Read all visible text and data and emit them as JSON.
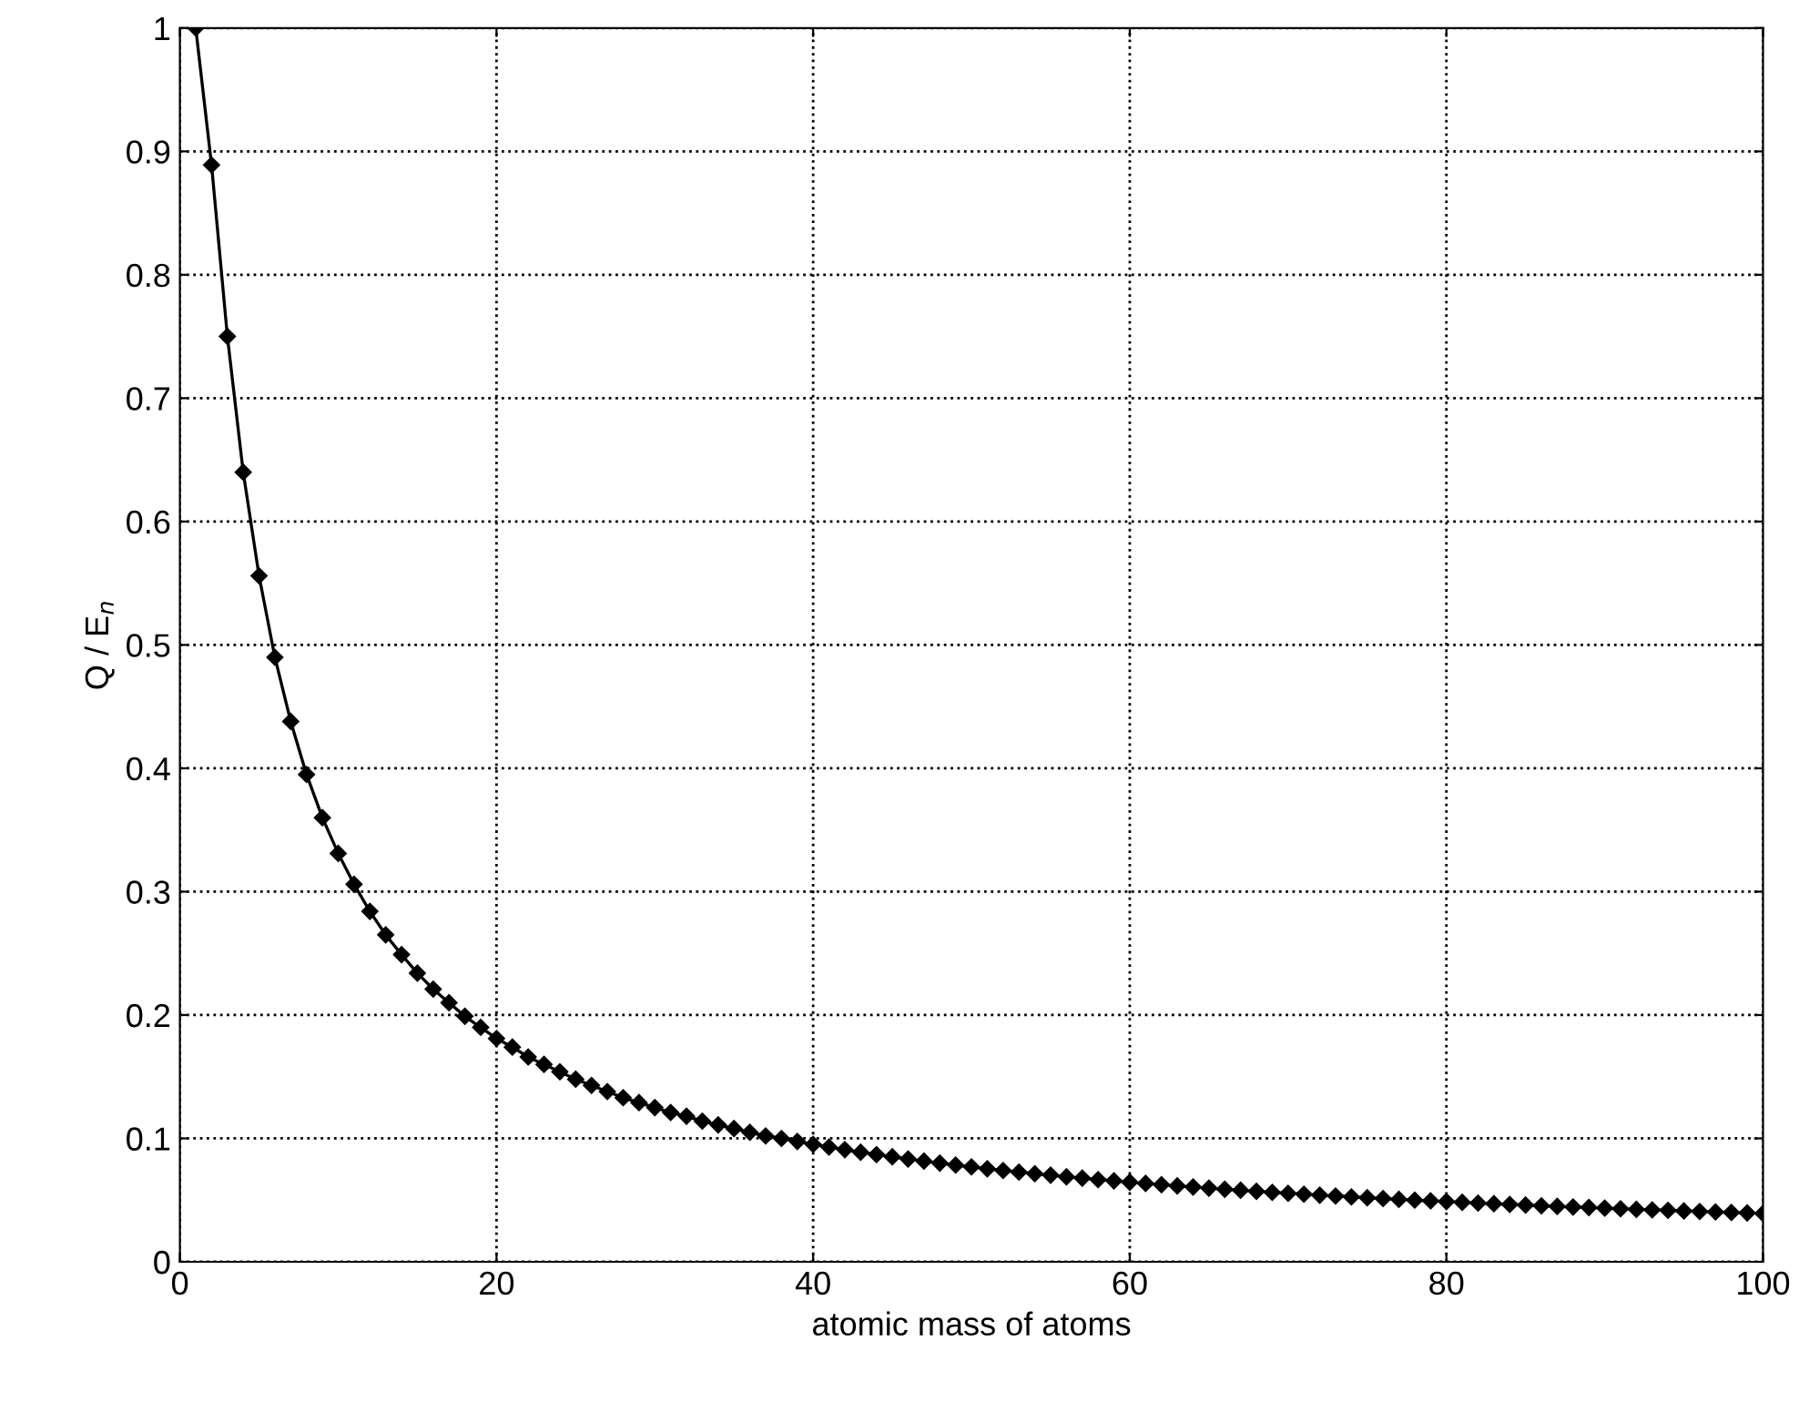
{
  "chart_data": {
    "type": "line",
    "xlabel": "atomic mass of atoms",
    "ylabel": "Q / E$_{n}$",
    "x": [
      1,
      2,
      3,
      4,
      5,
      6,
      7,
      8,
      9,
      10,
      11,
      12,
      13,
      14,
      15,
      16,
      17,
      18,
      19,
      20,
      21,
      22,
      23,
      24,
      25,
      26,
      27,
      28,
      29,
      30,
      31,
      32,
      33,
      34,
      35,
      36,
      37,
      38,
      39,
      40,
      41,
      42,
      43,
      44,
      45,
      46,
      47,
      48,
      49,
      50,
      51,
      52,
      53,
      54,
      55,
      56,
      57,
      58,
      59,
      60,
      61,
      62,
      63,
      64,
      65,
      66,
      67,
      68,
      69,
      70,
      71,
      72,
      73,
      74,
      75,
      76,
      77,
      78,
      79,
      80,
      81,
      82,
      83,
      84,
      85,
      86,
      87,
      88,
      89,
      90,
      91,
      92,
      93,
      94,
      95,
      96,
      97,
      98,
      99,
      100
    ],
    "series": [
      {
        "color": "#000000",
        "values": [
          1,
          0.889,
          0.75,
          0.64,
          0.556,
          0.49,
          0.438,
          0.395,
          0.36,
          0.331,
          0.306,
          0.284,
          0.265,
          0.249,
          0.234,
          0.221,
          0.21,
          0.199,
          0.19,
          0.181,
          0.174,
          0.166,
          0.16,
          0.154,
          0.148,
          0.143,
          0.138,
          0.133,
          0.129,
          0.125,
          0.121,
          0.118,
          0.114,
          0.111,
          0.108,
          0.105,
          0.102,
          0.1,
          0.0975,
          0.0952,
          0.093,
          0.0909,
          0.0888,
          0.0869,
          0.0851,
          0.0833,
          0.0816,
          0.08,
          0.0784,
          0.0769,
          0.0754,
          0.074,
          0.0727,
          0.0714,
          0.0702,
          0.0689,
          0.0678,
          0.0666,
          0.0656,
          0.0645,
          0.0635,
          0.0625,
          0.0615,
          0.0606,
          0.0597,
          0.0588,
          0.058,
          0.0571,
          0.0563,
          0.0555,
          0.0548,
          0.054,
          0.0533,
          0.0526,
          0.0519,
          0.0513,
          0.0506,
          0.05,
          0.0494,
          0.0488,
          0.0482,
          0.0476,
          0.0471,
          0.0465,
          0.046,
          0.0454,
          0.0449,
          0.0444,
          0.044,
          0.0435,
          0.043,
          0.0425,
          0.0421,
          0.0417,
          0.0412,
          0.0408,
          0.0404,
          0.04,
          0.0396,
          0.0392
        ]
      }
    ],
    "xlim": [
      0,
      100
    ],
    "ylim": [
      0,
      1
    ],
    "xticks": [
      0,
      20,
      40,
      60,
      80,
      100
    ],
    "yticks": [
      0,
      0.1,
      0.2,
      0.3,
      0.4,
      0.5,
      0.6,
      0.7,
      0.8,
      0.9,
      1
    ],
    "grid": true,
    "marker": "diamond",
    "line_style": "solid"
  }
}
